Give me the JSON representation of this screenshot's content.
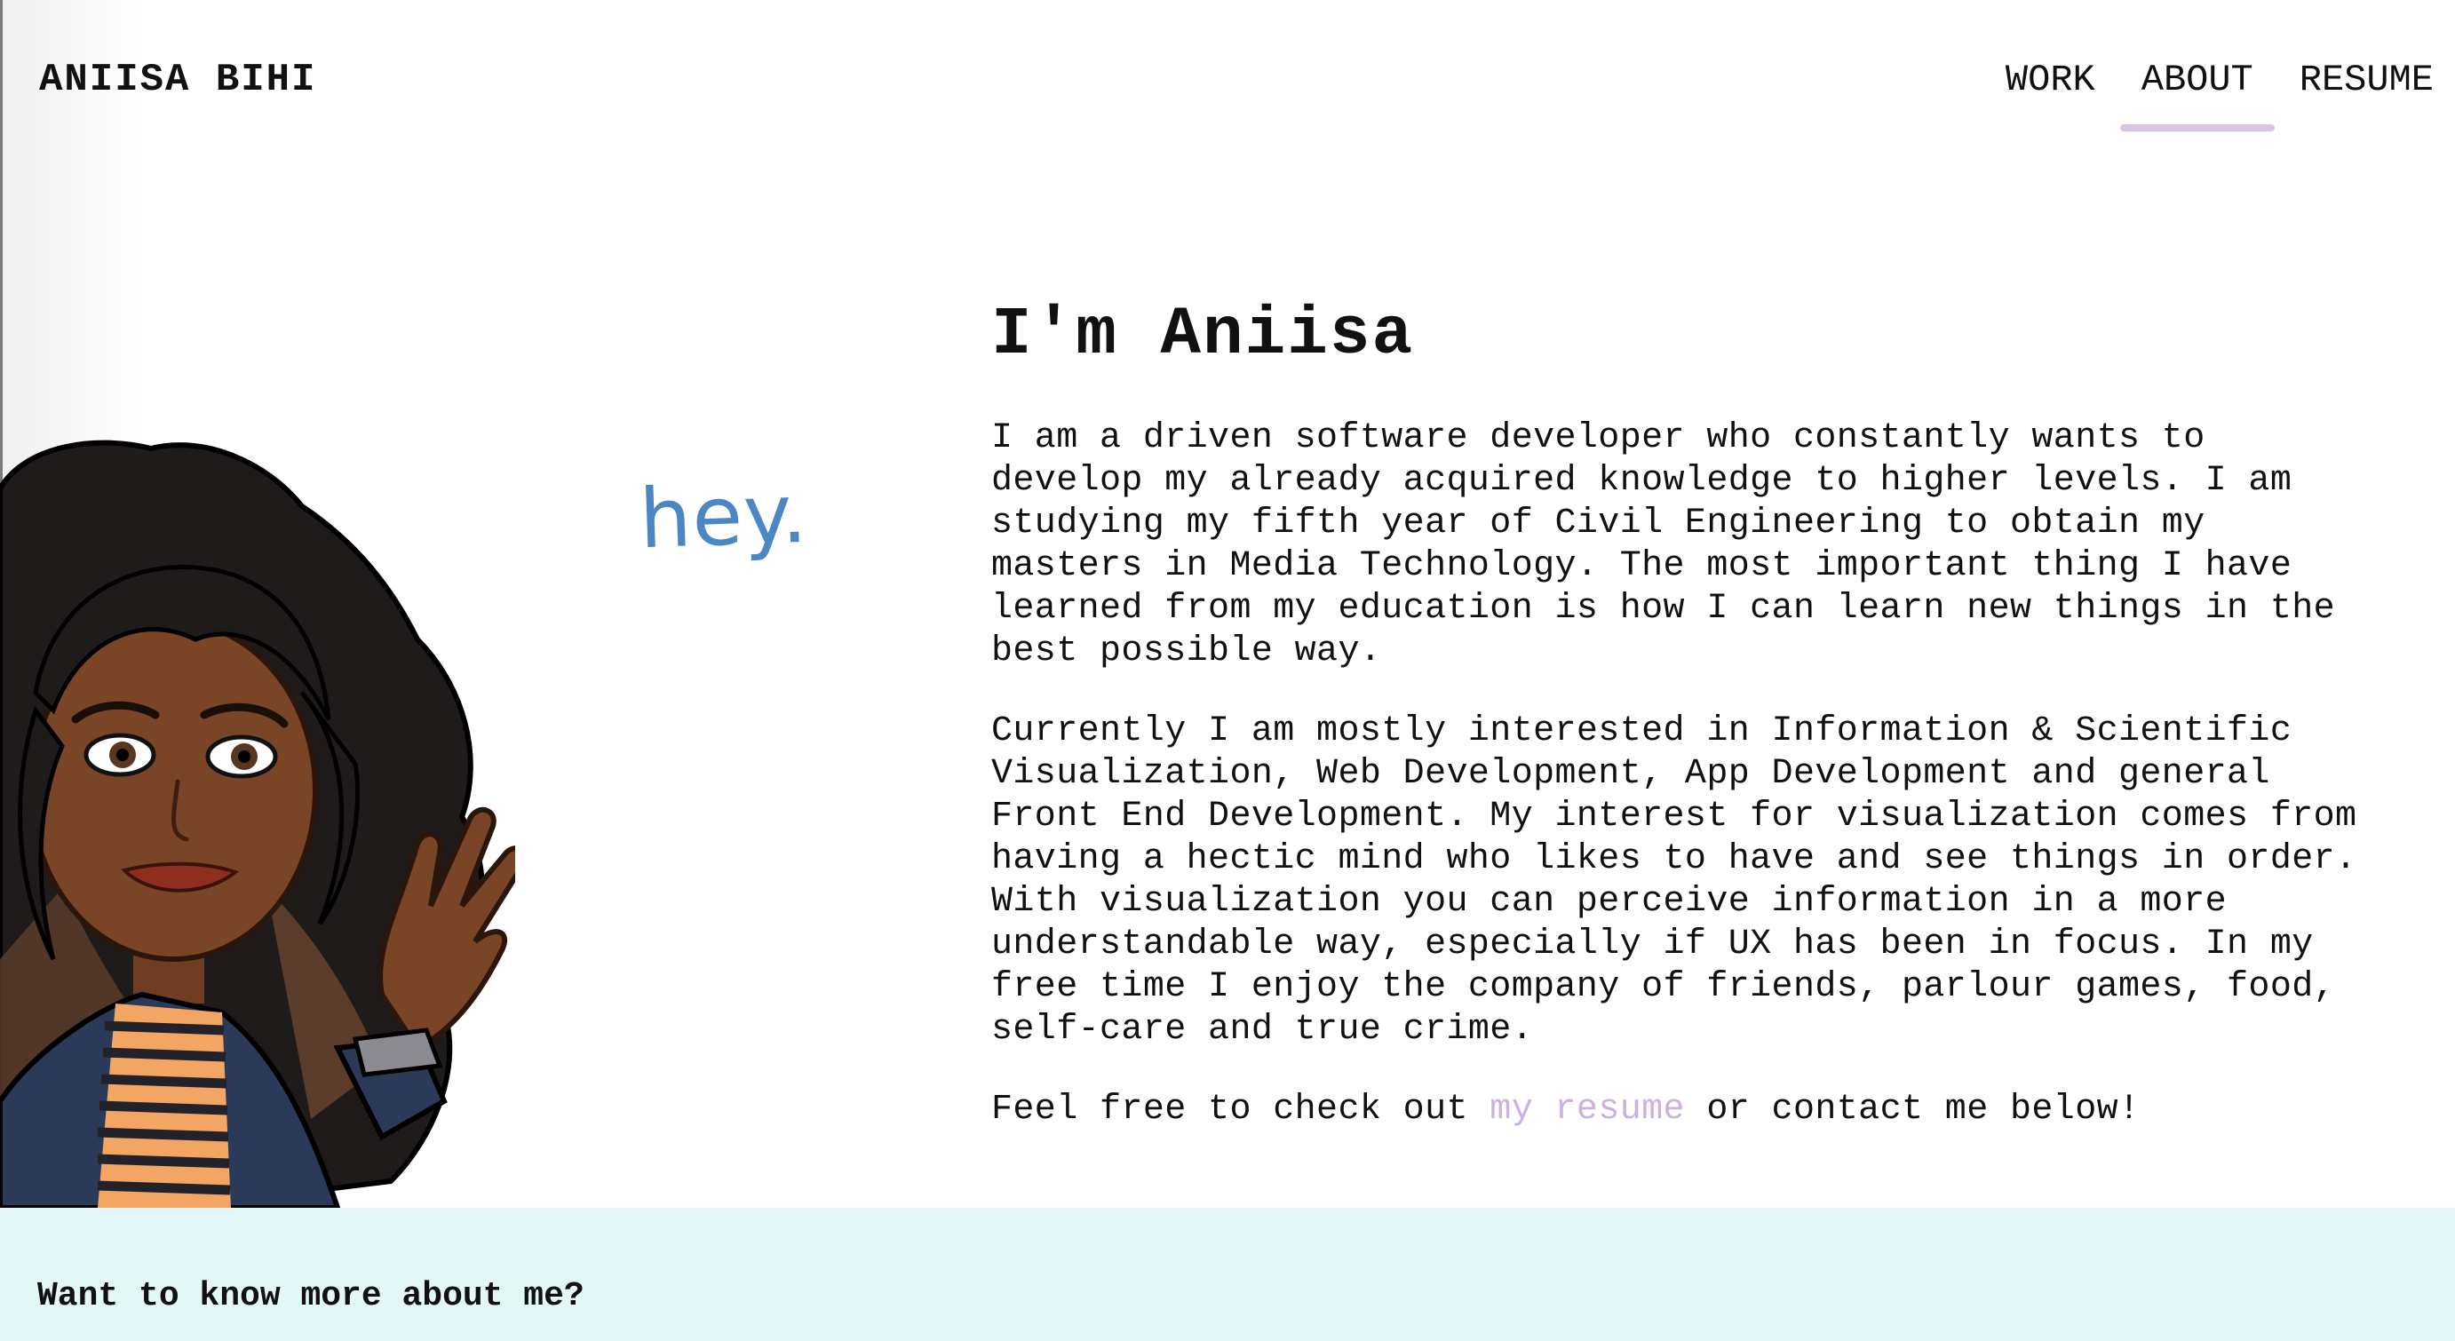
{
  "header": {
    "brand": "ANIISA BIHI",
    "nav": [
      {
        "label": "WORK"
      },
      {
        "label": "ABOUT",
        "active": true
      },
      {
        "label": "RESUME"
      }
    ]
  },
  "hero": {
    "greeting": "hey.",
    "avatar_icon": "bitmoji-avatar-waving"
  },
  "main": {
    "title": "I'm Aniisa",
    "paragraph1": "I am a driven software developer who constantly wants to\ndevelop my already acquired knowledge to higher levels. I am\nstudying my fifth year of Civil Engineering to obtain my\nmasters in Media Technology. The most important thing I have\nlearned from my education is how I can learn new things in the\nbest possible way.",
    "paragraph2": "Currently I am mostly interested in Information & Scientific\nVisualization, Web Development, App Development and general\nFront End Development. My interest for visualization comes from\nhaving a hectic mind who likes to have and see things in order.\nWith visualization you can perceive information in a more\nunderstandable way, especially if UX has been in focus. In my\nfree time I enjoy the company of friends, parlour games, food,\nself-care and true crime.",
    "cta_before": "Feel free to check out ",
    "cta_link": "my resume",
    "cta_after": " or contact me below!"
  },
  "footer": {
    "title": "Want to know more about me?"
  },
  "colors": {
    "accent": "#d9c6e6",
    "link": "#cbb1df",
    "greeting": "#4b87c3",
    "footer_bg": "#e3f8f6"
  }
}
